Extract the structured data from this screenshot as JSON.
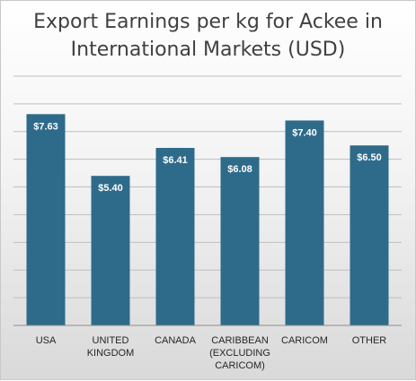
{
  "chart_data": {
    "type": "bar",
    "title_lines": [
      "Export Earnings per kg for Ackee in",
      "International Markets (USD)"
    ],
    "categories": [
      [
        "USA"
      ],
      [
        "UNITED",
        "KINGDOM"
      ],
      [
        "CANADA"
      ],
      [
        "CARIBBEAN",
        "(EXCLUDING",
        "CARICOM)"
      ],
      [
        "CARICOM"
      ],
      [
        "OTHER"
      ]
    ],
    "values": [
      7.63,
      5.4,
      6.41,
      6.08,
      7.4,
      6.5
    ],
    "data_labels": [
      "$7.63",
      "$5.40",
      "$6.41",
      "$6.08",
      "$7.40",
      "$6.50"
    ],
    "ylim": [
      0,
      9
    ],
    "grid": true,
    "bar_color": "#2e6b8a",
    "gridline_color": "#bfbfbf"
  }
}
